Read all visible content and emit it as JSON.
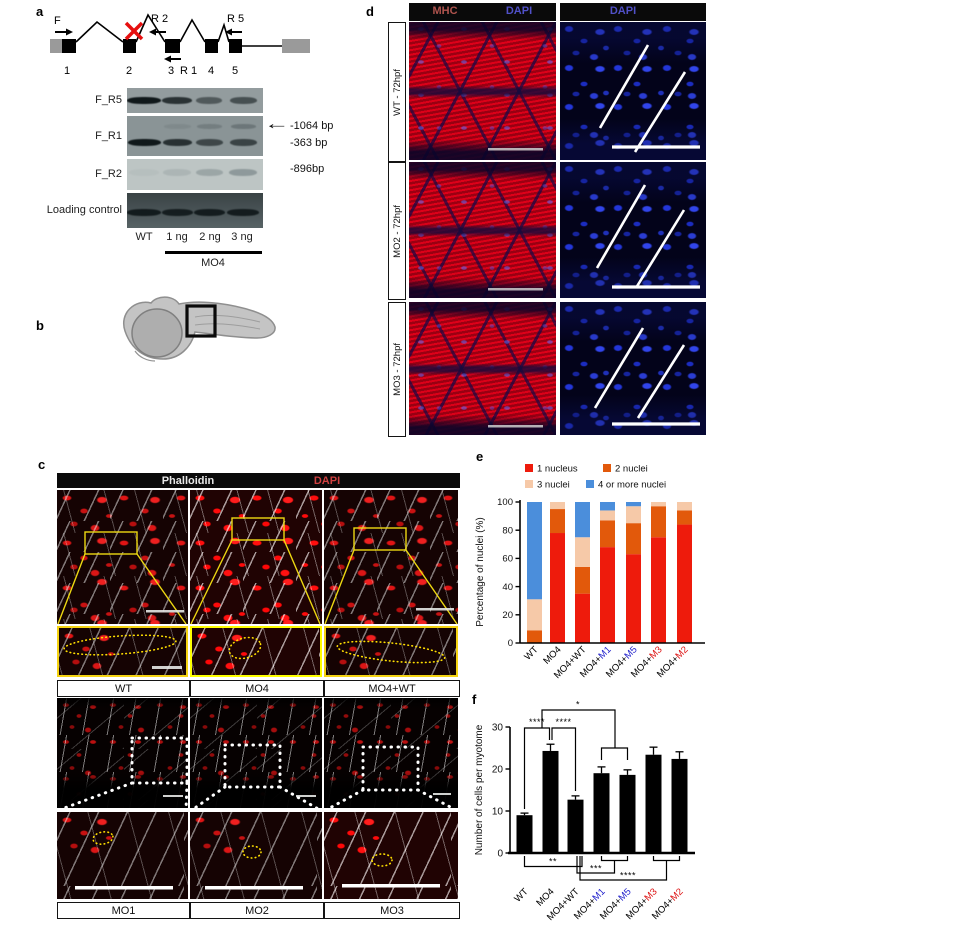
{
  "figure_labels": {
    "a": "a",
    "b": "b",
    "c": "c",
    "d": "d",
    "e": "e",
    "f": "f"
  },
  "panel_a": {
    "gene": {
      "primer_f": "F",
      "primer_r2": "R 2",
      "primer_r5": "R 5",
      "primer_r1": "R 1",
      "exons": [
        "1",
        "2",
        "3",
        "4",
        "5"
      ]
    },
    "gel": {
      "row_labels": [
        "F_R5",
        "F_R1",
        "F_R2",
        "Loading control"
      ],
      "annotations": {
        "a1064": "-1064 bp",
        "a363": "-363 bp",
        "a896": "-896bp"
      },
      "lanes": [
        "WT",
        "1 ng",
        "2 ng",
        "3 ng"
      ],
      "group": "MO4",
      "bands": {
        "rows": [
          {
            "y": 0.5,
            "widths": [
              34,
              30,
              26,
              27
            ],
            "opacity": [
              1,
              0.8,
              0.5,
              0.58
            ],
            "faint": false
          },
          {
            "y": 0.66,
            "widths": [
              33,
              29,
              27,
              27
            ],
            "opacity": [
              1,
              0.8,
              0.62,
              0.65
            ],
            "faint": false,
            "upper_y": 0.26,
            "upper_opacity": [
              0,
              0.1,
              0.22,
              0.3
            ]
          },
          {
            "y": 0.42,
            "widths": [
              30,
              28,
              27,
              28
            ],
            "opacity": [
              0.06,
              0.16,
              0.32,
              0.45
            ],
            "faint": true
          },
          {
            "y": 0.55,
            "widths": [
              34,
              31,
              31,
              32
            ],
            "opacity": [
              0.95,
              0.9,
              0.92,
              0.92
            ],
            "faint": false
          }
        ]
      }
    }
  },
  "panel_b": {
    "note": "zebrafish embryo with boxed trunk region"
  },
  "panel_c": {
    "header": {
      "phalloidin": "Phalloidin",
      "dapi": "DAPI"
    },
    "top_labels": [
      "WT",
      "MO4",
      "MO4+WT"
    ],
    "bottom_labels": [
      "MO1",
      "MO2",
      "MO3"
    ]
  },
  "panel_d": {
    "headers": {
      "mhc": "MHC",
      "dapi_left": "DAPI",
      "dapi_right": "DAPI"
    },
    "rows": [
      "WT - 72hpf",
      "MO2 - 72hpf",
      "MO3 - 72hpf"
    ]
  },
  "colors": {
    "nucleus1": "#ee1b0c",
    "nuclei2": "#e2590b",
    "nuclei3": "#f6c9a8",
    "nuclei4": "#4b8edb",
    "label_blue": "#2222cc",
    "label_red": "#dd1111"
  },
  "chart_data": [
    {
      "panel": "e",
      "type": "bar",
      "stacked": true,
      "title": "",
      "ylabel": "Percentage of nuclei (%)",
      "xlabel": "",
      "ylim": [
        0,
        100
      ],
      "yticks": [
        0,
        20,
        40,
        60,
        80,
        100
      ],
      "legend_position": "top",
      "grid": false,
      "categories": [
        {
          "pre": "WT",
          "suf": "",
          "color": "#000000"
        },
        {
          "pre": "MO4",
          "suf": "",
          "color": "#000000"
        },
        {
          "pre": "MO4+WT",
          "suf": "",
          "color": "#000000"
        },
        {
          "pre": "MO4+",
          "suf": "M1",
          "color": "#2222cc"
        },
        {
          "pre": "MO4+",
          "suf": "M5",
          "color": "#2222cc"
        },
        {
          "pre": "MO4+",
          "suf": "M3",
          "color": "#dd1111"
        },
        {
          "pre": "MO4+",
          "suf": "M2",
          "color": "#dd1111"
        }
      ],
      "series": [
        {
          "name": "1 nucleus",
          "color": "#ee1b0c",
          "values": [
            0,
            78,
            35,
            68,
            63,
            75,
            84
          ]
        },
        {
          "name": "2 nuclei",
          "color": "#e2590b",
          "values": [
            9,
            17,
            19,
            19,
            22,
            22,
            10
          ]
        },
        {
          "name": "3 nuclei",
          "color": "#f6c9a8",
          "values": [
            22,
            5,
            21,
            7,
            12,
            3,
            6
          ]
        },
        {
          "name": "4 or more nuclei",
          "color": "#4b8edb",
          "values": [
            69,
            0,
            25,
            6,
            3,
            0,
            0
          ]
        }
      ]
    },
    {
      "panel": "f",
      "type": "bar",
      "stacked": false,
      "title": "",
      "ylabel": "Number of cells per myotome",
      "xlabel": "",
      "ylim": [
        0,
        30
      ],
      "yticks": [
        0,
        10,
        20,
        30
      ],
      "grid": false,
      "categories": [
        {
          "pre": "WT",
          "suf": "",
          "color": "#000000"
        },
        {
          "pre": "MO4",
          "suf": "",
          "color": "#000000"
        },
        {
          "pre": "MO4+WT",
          "suf": "",
          "color": "#000000"
        },
        {
          "pre": "MO4+",
          "suf": "M1",
          "color": "#2222cc"
        },
        {
          "pre": "MO4+",
          "suf": "M5",
          "color": "#2222cc"
        },
        {
          "pre": "MO4+",
          "suf": "M3",
          "color": "#dd1111"
        },
        {
          "pre": "MO4+",
          "suf": "M2",
          "color": "#dd1111"
        }
      ],
      "series": [
        {
          "name": "Number of cells per myotome",
          "color": "#000000",
          "values": [
            9,
            24.3,
            12.7,
            19,
            18.6,
            23.4,
            22.4
          ],
          "errors": [
            0.5,
            1.6,
            0.9,
            1.5,
            1.2,
            1.8,
            1.7
          ]
        }
      ],
      "significance": [
        {
          "label": "****",
          "groups": [
            "WT",
            "MO4"
          ],
          "position": "top"
        },
        {
          "label": "****",
          "groups": [
            "MO4",
            "MO4+WT"
          ],
          "position": "top"
        },
        {
          "label": "*",
          "groups": [
            "MO4",
            "MO4+M1,MO4+M5"
          ],
          "position": "top"
        },
        {
          "label": "**",
          "groups": [
            "WT",
            "MO4+WT"
          ],
          "position": "bottom"
        },
        {
          "label": "***",
          "groups": [
            "MO4+WT",
            "MO4+M1,MO4+M5"
          ],
          "position": "bottom"
        },
        {
          "label": "****",
          "groups": [
            "MO4+WT",
            "MO4+M3,MO4+M2"
          ],
          "position": "bottom"
        }
      ]
    }
  ]
}
